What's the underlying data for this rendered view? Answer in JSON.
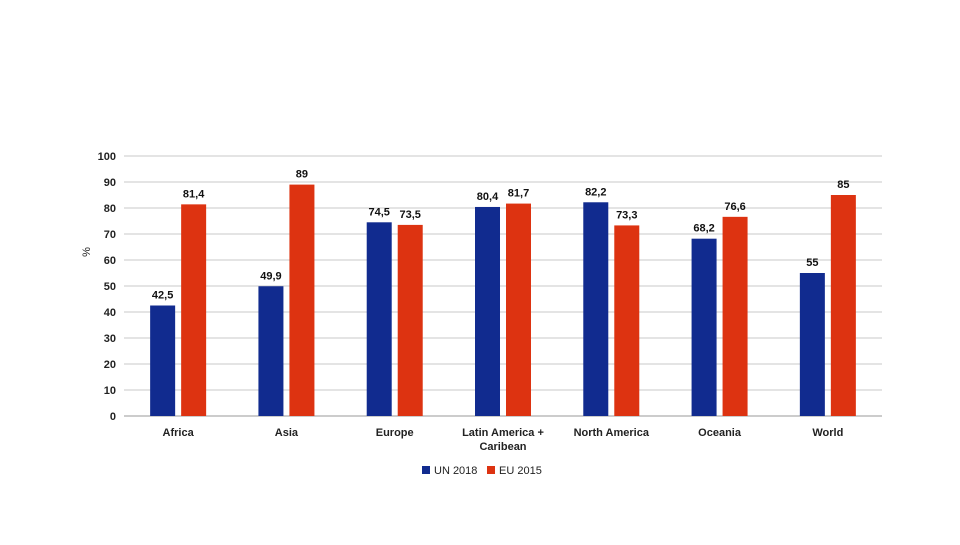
{
  "chart_data": {
    "type": "bar",
    "title": "",
    "xlabel": "",
    "ylabel": "%",
    "ylim": [
      0,
      100
    ],
    "yticks": [
      0,
      10,
      20,
      30,
      40,
      50,
      60,
      70,
      80,
      90,
      100
    ],
    "grid": true,
    "legend_position": "bottom",
    "categories": [
      [
        "Africa"
      ],
      [
        "Asia"
      ],
      [
        "Europe"
      ],
      [
        "Latin America +",
        "Caribean"
      ],
      [
        "North America"
      ],
      [
        "Oceania"
      ],
      [
        "World"
      ]
    ],
    "series": [
      {
        "name": "UN 2018",
        "color": "#112b8f",
        "values": [
          42.5,
          49.9,
          74.5,
          80.4,
          82.2,
          68.2,
          55
        ],
        "labels": [
          "42,5",
          "49,9",
          "74,5",
          "80,4",
          "82,2",
          "68,2",
          "55"
        ]
      },
      {
        "name": "EU 2015",
        "color": "#dd3311",
        "values": [
          81.4,
          89,
          73.5,
          81.7,
          73.3,
          76.6,
          85
        ],
        "labels": [
          "81,4",
          "89",
          "73,5",
          "81,7",
          "73,3",
          "76,6",
          "85"
        ]
      }
    ],
    "colors": {
      "grid": "#c8c8c8",
      "axis": "#9a9a9a"
    }
  }
}
